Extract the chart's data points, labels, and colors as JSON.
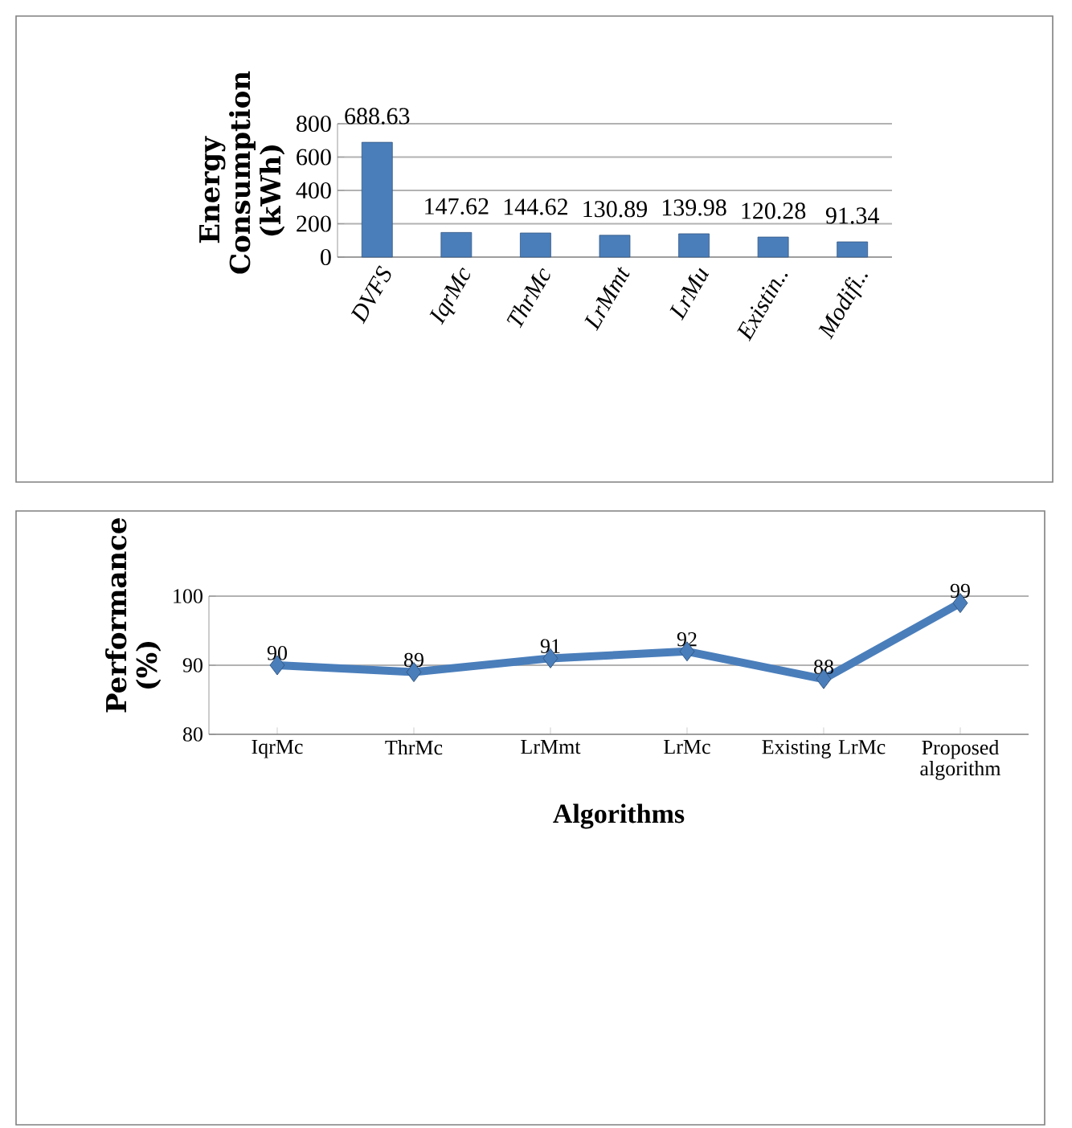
{
  "chart_data": [
    {
      "type": "bar",
      "categories": [
        "DVFS",
        "IqrMc",
        "ThrMc",
        "LrMmt",
        "LrMu",
        "Existin..",
        "Modifi.."
      ],
      "values": [
        688.63,
        147.62,
        144.62,
        130.89,
        139.98,
        120.28,
        91.34
      ],
      "color": "#4a7ebb",
      "ylabel": "Energy Consumption (kWh)",
      "ylim": [
        0,
        800
      ],
      "yticks": [
        0,
        200,
        400,
        600,
        800
      ],
      "grid": "y",
      "data_labels": true
    },
    {
      "type": "line",
      "categories": [
        "IqrMc",
        "ThrMc",
        "LrMmt",
        "LrMc",
        "Existing LrMc",
        "Proposed algorithm"
      ],
      "values": [
        90,
        89,
        91,
        92,
        88,
        99
      ],
      "color": "#4a7ebb",
      "xlabel": "Algorithms",
      "ylabel": "Performance (%)",
      "ylim": [
        80,
        100
      ],
      "yticks": [
        80,
        90,
        100
      ],
      "grid": "y",
      "data_labels": true,
      "marker": "diamond"
    }
  ]
}
